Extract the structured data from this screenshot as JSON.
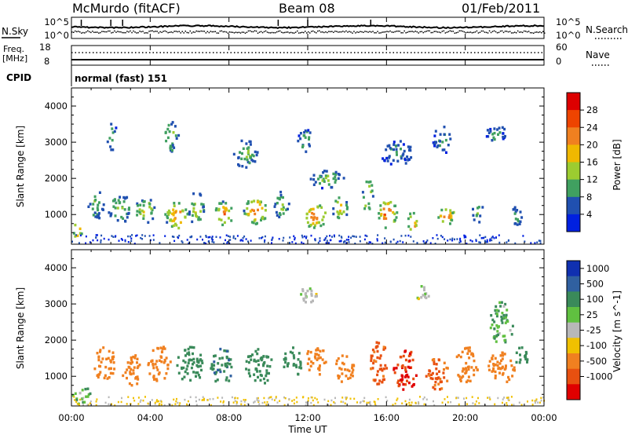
{
  "header": {
    "station": "McMurdo (fitACF)",
    "beam": "Beam 08",
    "date": "01/Feb/2011"
  },
  "noise_panel": {
    "left_label": "N.Sky",
    "left_ticks": [
      "10^5",
      "10^0"
    ],
    "right_label": "N.Search",
    "right_ticks": [
      "10^5",
      "10^0"
    ]
  },
  "freq_panel": {
    "left_label_1": "Freq.",
    "left_label_2": "[MHz]",
    "left_ticks": [
      "18",
      "8"
    ],
    "right_label": "Nave",
    "right_ticks": [
      "60",
      "0"
    ]
  },
  "cpid": {
    "label": "CPID",
    "value": "normal (fast) 151"
  },
  "power_panel": {
    "ylabel": "Slant Range [km]",
    "colorbar_label": "Power [dB]",
    "colorbar_ticks": [
      "28",
      "24",
      "20",
      "16",
      "12",
      "8",
      "4"
    ],
    "colorbar_colors": [
      "#dd0000",
      "#ee4400",
      "#f08020",
      "#f0b800",
      "#9ccc30",
      "#40a060",
      "#2050b0",
      "#0020e0"
    ]
  },
  "velocity_panel": {
    "ylabel": "Slant Range [km]",
    "colorbar_label": "Velocity [m s^-1]",
    "colorbar_ticks": [
      "1000",
      "500",
      "100",
      "25",
      "-25",
      "-100",
      "-500",
      "-1000"
    ],
    "colorbar_colors": [
      "#1030b0",
      "#3060a0",
      "#3a8a5a",
      "#60c040",
      "#b8b8b8",
      "#f0c000",
      "#f08020",
      "#e85010",
      "#e00000"
    ]
  },
  "x_axis": {
    "label": "Time UT",
    "ticks": [
      "00:00",
      "04:00",
      "08:00",
      "12:00",
      "16:00",
      "20:00",
      "00:00"
    ]
  },
  "chart_data": [
    {
      "type": "heatmap",
      "title": "Power",
      "x_range": [
        "00:00",
        "24:00"
      ],
      "ylim": [
        180,
        4500
      ],
      "ylabel": "Slant Range [km]",
      "yticks": [
        1000,
        2000,
        3000,
        4000
      ],
      "z_units": "dB",
      "z_range": [
        0,
        30
      ],
      "blobs": [
        {
          "t": 0.25,
          "r": 600,
          "dt": 0.5,
          "dr": 250,
          "z": 24
        },
        {
          "t": 1.2,
          "r": 1300,
          "dt": 0.8,
          "dr": 400,
          "z": 14
        },
        {
          "t": 2.4,
          "r": 1200,
          "dt": 1.2,
          "dr": 400,
          "z": 16
        },
        {
          "t": 3.7,
          "r": 1150,
          "dt": 1.0,
          "dr": 380,
          "z": 18
        },
        {
          "t": 5.3,
          "r": 1000,
          "dt": 1.2,
          "dr": 380,
          "z": 26
        },
        {
          "t": 6.3,
          "r": 1200,
          "dt": 0.8,
          "dr": 450,
          "z": 18
        },
        {
          "t": 7.7,
          "r": 1050,
          "dt": 1.0,
          "dr": 350,
          "z": 24
        },
        {
          "t": 9.3,
          "r": 1150,
          "dt": 1.2,
          "dr": 380,
          "z": 26
        },
        {
          "t": 10.6,
          "r": 1300,
          "dt": 0.8,
          "dr": 380,
          "z": 16
        },
        {
          "t": 12.3,
          "r": 1000,
          "dt": 1.2,
          "dr": 350,
          "z": 26
        },
        {
          "t": 13.6,
          "r": 1200,
          "dt": 0.8,
          "dr": 380,
          "z": 20
        },
        {
          "t": 15.0,
          "r": 1550,
          "dt": 0.6,
          "dr": 450,
          "z": 20
        },
        {
          "t": 16.0,
          "r": 1050,
          "dt": 1.0,
          "dr": 400,
          "z": 28
        },
        {
          "t": 17.3,
          "r": 800,
          "dt": 0.6,
          "dr": 300,
          "z": 26
        },
        {
          "t": 19.0,
          "r": 1000,
          "dt": 0.9,
          "dr": 250,
          "z": 26
        },
        {
          "t": 20.6,
          "r": 1100,
          "dt": 0.6,
          "dr": 300,
          "z": 12
        },
        {
          "t": 22.6,
          "r": 1000,
          "dt": 0.6,
          "dr": 300,
          "z": 12
        },
        {
          "t": 2.0,
          "r": 3200,
          "dt": 0.6,
          "dr": 400,
          "z": 12
        },
        {
          "t": 5.0,
          "r": 3200,
          "dt": 0.8,
          "dr": 450,
          "z": 16
        },
        {
          "t": 8.8,
          "r": 2700,
          "dt": 1.2,
          "dr": 400,
          "z": 14
        },
        {
          "t": 11.8,
          "r": 3100,
          "dt": 0.7,
          "dr": 350,
          "z": 12
        },
        {
          "t": 13.0,
          "r": 2000,
          "dt": 1.8,
          "dr": 250,
          "z": 14
        },
        {
          "t": 16.5,
          "r": 2750,
          "dt": 1.8,
          "dr": 350,
          "z": 10
        },
        {
          "t": 18.8,
          "r": 3100,
          "dt": 1.0,
          "dr": 400,
          "z": 10
        },
        {
          "t": 21.5,
          "r": 3250,
          "dt": 1.0,
          "dr": 300,
          "z": 10
        }
      ]
    },
    {
      "type": "heatmap",
      "title": "Velocity",
      "x_range": [
        "00:00",
        "24:00"
      ],
      "ylim": [
        180,
        4500
      ],
      "ylabel": "Slant Range [km]",
      "yticks": [
        1000,
        2000,
        3000,
        4000
      ],
      "z_units": "m s^-1",
      "z_range": [
        -1000,
        1000
      ],
      "blobs": [
        {
          "t": 0.5,
          "r": 500,
          "dt": 1.0,
          "dr": 250,
          "z": 50
        },
        {
          "t": 1.6,
          "r": 1400,
          "dt": 1.2,
          "dr": 450,
          "z": -300
        },
        {
          "t": 3.0,
          "r": 1200,
          "dt": 1.0,
          "dr": 450,
          "z": -200
        },
        {
          "t": 4.4,
          "r": 1400,
          "dt": 1.2,
          "dr": 500,
          "z": -300
        },
        {
          "t": 6.0,
          "r": 1350,
          "dt": 1.4,
          "dr": 500,
          "z": 200
        },
        {
          "t": 7.6,
          "r": 1300,
          "dt": 1.2,
          "dr": 500,
          "z": 250
        },
        {
          "t": 9.5,
          "r": 1300,
          "dt": 1.4,
          "dr": 500,
          "z": 200
        },
        {
          "t": 11.2,
          "r": 1400,
          "dt": 1.0,
          "dr": 450,
          "z": 200
        },
        {
          "t": 12.4,
          "r": 1500,
          "dt": 1.0,
          "dr": 450,
          "z": -300
        },
        {
          "t": 13.8,
          "r": 1250,
          "dt": 1.0,
          "dr": 400,
          "z": -300
        },
        {
          "t": 15.6,
          "r": 1400,
          "dt": 1.0,
          "dr": 600,
          "z": -500
        },
        {
          "t": 16.9,
          "r": 1200,
          "dt": 1.2,
          "dr": 600,
          "z": -700
        },
        {
          "t": 18.5,
          "r": 1100,
          "dt": 1.2,
          "dr": 450,
          "z": -400
        },
        {
          "t": 20.0,
          "r": 1350,
          "dt": 1.2,
          "dr": 500,
          "z": -300
        },
        {
          "t": 21.8,
          "r": 1300,
          "dt": 1.4,
          "dr": 450,
          "z": -200
        },
        {
          "t": 22.8,
          "r": 1550,
          "dt": 0.8,
          "dr": 300,
          "z": 150
        },
        {
          "t": 12.0,
          "r": 3300,
          "dt": 1.0,
          "dr": 250,
          "z": 0
        },
        {
          "t": 17.8,
          "r": 3300,
          "dt": 0.6,
          "dr": 250,
          "z": 0
        },
        {
          "t": 21.8,
          "r": 2500,
          "dt": 1.2,
          "dr": 600,
          "z": 60
        }
      ]
    }
  ]
}
